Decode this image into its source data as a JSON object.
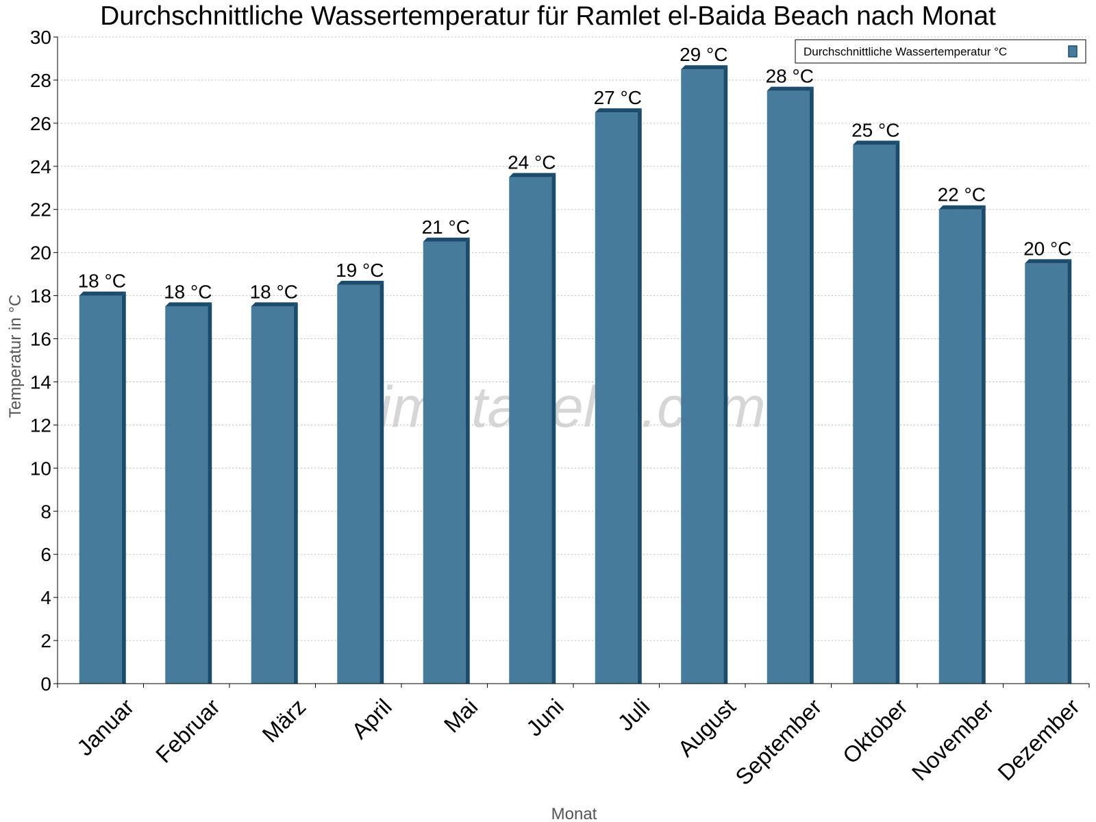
{
  "chart_data": {
    "type": "bar",
    "title": "Durchschnittliche Wassertemperatur für Ramlet el-Baida Beach nach Monat",
    "xlabel": "Monat",
    "ylabel": "Temperatur in °C",
    "ylim": [
      0,
      30
    ],
    "yticks": [
      0,
      2,
      4,
      6,
      8,
      10,
      12,
      14,
      16,
      18,
      20,
      22,
      24,
      26,
      28,
      30
    ],
    "grid": true,
    "legend_position": "top-right",
    "categories": [
      "Januar",
      "Februar",
      "März",
      "April",
      "Mai",
      "Juni",
      "Juli",
      "August",
      "September",
      "Oktober",
      "November",
      "Dezember"
    ],
    "series": [
      {
        "name": "Durchschnittliche Wassertemperatur °C",
        "color": "#467b9c",
        "edge_color": "#1c4c6c",
        "values": [
          18.0,
          17.5,
          17.5,
          18.5,
          20.5,
          23.5,
          26.5,
          28.5,
          27.5,
          25.0,
          22.0,
          19.5
        ],
        "labels": [
          "18 °C",
          "18 °C",
          "18 °C",
          "19 °C",
          "21 °C",
          "24 °C",
          "27 °C",
          "29 °C",
          "28 °C",
          "25 °C",
          "22 °C",
          "20 °C"
        ]
      }
    ]
  },
  "watermark": "klimatabelle.com"
}
